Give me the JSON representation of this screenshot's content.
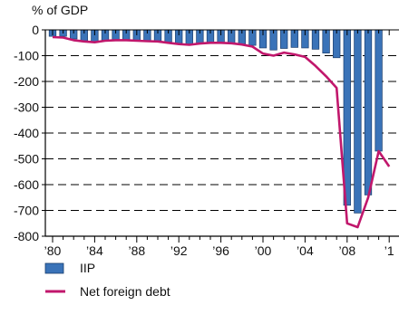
{
  "chart_data": {
    "type": "bar",
    "ylabel": "% of GDP",
    "ylim": [
      -800,
      0
    ],
    "yticks": [
      0,
      -100,
      -200,
      -300,
      -400,
      -500,
      -600,
      -700,
      -800
    ],
    "xlim": [
      1980,
      2011
    ],
    "xticks": [
      {
        "year": 1980,
        "label": "’80"
      },
      {
        "year": 1984,
        "label": "’84"
      },
      {
        "year": 1988,
        "label": "’88"
      },
      {
        "year": 1992,
        "label": "’92"
      },
      {
        "year": 1996,
        "label": "’96"
      },
      {
        "year": 2000,
        "label": "’00"
      },
      {
        "year": 2004,
        "label": "’04"
      },
      {
        "year": 2008,
        "label": "’08"
      },
      {
        "year": 2012,
        "label": "’1"
      }
    ],
    "grid": "horizontal dashed",
    "legend_position": "bottom-left",
    "colors": {
      "bar": "#3a73b8",
      "line": "#c1176c",
      "grid": "#000000"
    },
    "series": [
      {
        "name": "IIP",
        "type": "bar",
        "x": [
          1980,
          1981,
          1982,
          1983,
          1984,
          1985,
          1986,
          1987,
          1988,
          1989,
          1990,
          1991,
          1992,
          1993,
          1994,
          1995,
          1996,
          1997,
          1998,
          1999,
          2000,
          2001,
          2002,
          2003,
          2004,
          2005,
          2006,
          2007,
          2008,
          2009,
          2010,
          2011
        ],
        "values": [
          -25,
          -25,
          -35,
          -42,
          -45,
          -40,
          -38,
          -38,
          -40,
          -42,
          -42,
          -47,
          -52,
          -55,
          -52,
          -50,
          -50,
          -52,
          -55,
          -60,
          -70,
          -78,
          -72,
          -68,
          -70,
          -75,
          -90,
          -108,
          -680,
          -710,
          -640,
          -470
        ]
      },
      {
        "name": "Net foreign debt",
        "type": "line",
        "x": [
          1980,
          1981,
          1982,
          1983,
          1984,
          1985,
          1986,
          1987,
          1988,
          1989,
          1990,
          1991,
          1992,
          1993,
          1994,
          1995,
          1996,
          1997,
          1998,
          1999,
          2000,
          2001,
          2002,
          2003,
          2004,
          2005,
          2006,
          2007,
          2008,
          2009,
          2010,
          2011,
          2012
        ],
        "values": [
          -28,
          -30,
          -40,
          -45,
          -48,
          -42,
          -40,
          -40,
          -42,
          -44,
          -45,
          -50,
          -55,
          -58,
          -53,
          -50,
          -50,
          -52,
          -57,
          -65,
          -92,
          -100,
          -88,
          -95,
          -105,
          -140,
          -180,
          -225,
          -750,
          -765,
          -650,
          -470,
          -530
        ]
      }
    ]
  },
  "legend": [
    {
      "label": "IIP",
      "color": "#3a73b8",
      "kind": "bar"
    },
    {
      "label": "Net foreign debt",
      "color": "#c1176c",
      "kind": "line"
    }
  ]
}
